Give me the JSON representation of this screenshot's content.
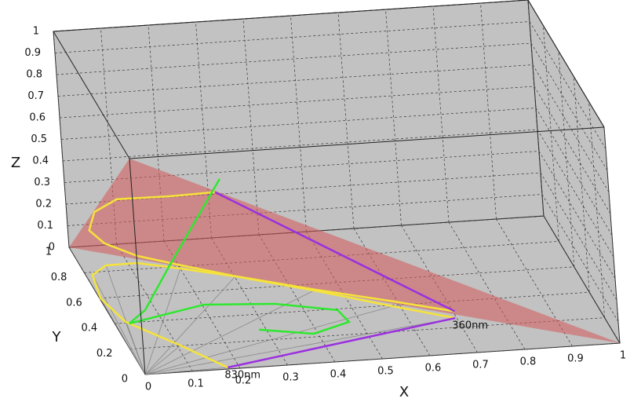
{
  "chart_data": {
    "type": "line3d",
    "xlabel": "X",
    "ylabel": "Y",
    "zlabel": "Z",
    "xlim": [
      0,
      1
    ],
    "ylim": [
      0,
      1
    ],
    "zlim": [
      0,
      1
    ],
    "xticks": [
      0,
      0.1,
      0.2,
      0.3,
      0.4,
      0.5,
      0.6,
      0.7,
      0.8,
      0.9,
      1
    ],
    "yticks": [
      0,
      0.2,
      0.4,
      0.6,
      0.8,
      1
    ],
    "zticks": [
      0,
      0.1,
      0.2,
      0.3,
      0.4,
      0.5,
      0.6,
      0.7,
      0.8,
      0.9,
      1
    ],
    "grid": true,
    "series": [
      {
        "color": "#f5e33a",
        "x": [
          0.176,
          0.107,
          0.024,
          0.002,
          0.014,
          0.053,
          0.119,
          0.2,
          0.302,
          0.444,
          0.584,
          0.697
        ],
        "y": [
          0.012,
          0.202,
          0.408,
          0.598,
          0.78,
          0.845,
          0.847,
          0.784,
          0.697,
          0.551,
          0.393,
          0.272
        ],
        "z": [
          0,
          0,
          0,
          0,
          0,
          0,
          0,
          0,
          0,
          0,
          0,
          0
        ]
      },
      {
        "color": "#f5e33a",
        "x": [
          0.176,
          0.107,
          0.024,
          0.002,
          0.014,
          0.053,
          0.119,
          0.2,
          0.302,
          0.444,
          0.584,
          0.697
        ],
        "y": [
          0.012,
          0.202,
          0.408,
          0.598,
          0.78,
          0.845,
          0.847,
          0.784,
          0.697,
          0.551,
          0.393,
          0.272
        ],
        "z": [
          0.812,
          0.691,
          0.568,
          0.4,
          0.206,
          0.102,
          0.034,
          0.016,
          0.001,
          0.005,
          0.023,
          0.031
        ]
      },
      {
        "color": "#2ee82e",
        "x": [
          0.256,
          0.136,
          0.078,
          0.03,
          0.204,
          0.348,
          0.468,
          0.477,
          0.391,
          0.285
        ],
        "y": [
          0.5,
          0.5,
          0.487,
          0.394,
          0.499,
          0.47,
          0.391,
          0.296,
          0.224,
          0.282
        ],
        "z": [
          0.574,
          0.184,
          0,
          0,
          0,
          0,
          0,
          0,
          0,
          0
        ]
      },
      {
        "color": "#9b30e0",
        "x": [
          0.176,
          0.697
        ],
        "y": [
          0.012,
          0.272
        ],
        "z": [
          0,
          0
        ]
      },
      {
        "color": "#9b30e0",
        "x": [
          0.176,
          0.697
        ],
        "y": [
          0.012,
          0.272
        ],
        "z": [
          0.812,
          0.031
        ]
      }
    ],
    "annotations": [
      {
        "text": "360nm",
        "x": 0.697,
        "y": 0.272,
        "z": 0
      },
      {
        "text": "830nm",
        "x": 0.176,
        "y": 0.012,
        "z": 0
      }
    ]
  }
}
